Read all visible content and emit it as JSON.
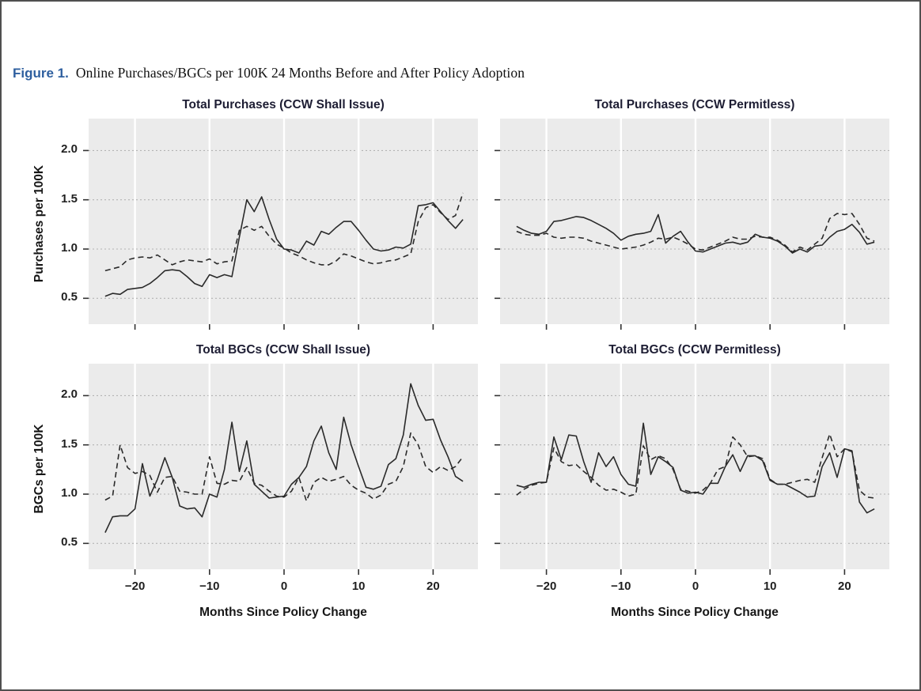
{
  "caption": {
    "label": "Figure 1.",
    "label_color": "#2e5f9f",
    "text": "Online Purchases/BGCs per 100K 24 Months Before and After Policy Adoption"
  },
  "axes": {
    "x_label": "Months Since Policy Change",
    "y_label_top": "Purchases per 100K",
    "y_label_bottom": "BGCs per 100K",
    "x_tick_labels": [
      "−20",
      "−10",
      "0",
      "10",
      "20"
    ],
    "x_tick_values": [
      -20,
      -10,
      0,
      10,
      20
    ],
    "y_tick_labels": [
      "0.5",
      "1.0",
      "1.5",
      "2.0"
    ],
    "y_tick_values": [
      0.5,
      1.0,
      1.5,
      2.0
    ]
  },
  "style": {
    "panel_background": "#ebebeb",
    "h_gridline_color": "#b3b3b3",
    "v_gridline_color": "#ffffff",
    "line_color": "#2a2a2a",
    "tick_color": "#333333"
  },
  "chart_data": {
    "type": "line",
    "grid": "on",
    "legend": "none",
    "xlim": [
      -26,
      26
    ],
    "ylim": [
      0.24,
      2.32
    ],
    "months": [
      -24,
      -23,
      -22,
      -21,
      -20,
      -19,
      -18,
      -17,
      -16,
      -15,
      -14,
      -13,
      -12,
      -11,
      -10,
      -9,
      -8,
      -7,
      -6,
      -5,
      -4,
      -3,
      -2,
      -1,
      0,
      1,
      2,
      3,
      4,
      5,
      6,
      7,
      8,
      9,
      10,
      11,
      12,
      13,
      14,
      15,
      16,
      17,
      18,
      19,
      20,
      21,
      22,
      23,
      24
    ],
    "panels": [
      {
        "title": "Total Purchases (CCW Shall Issue)",
        "ylabel": "Purchases per 100K",
        "series": [
          {
            "name": "solid",
            "style": "solid",
            "values": [
              0.52,
              0.55,
              0.54,
              0.59,
              0.6,
              0.61,
              0.65,
              0.71,
              0.78,
              0.79,
              0.78,
              0.72,
              0.65,
              0.62,
              0.74,
              0.71,
              0.74,
              0.72,
              1.12,
              1.5,
              1.38,
              1.53,
              1.3,
              1.1,
              1.0,
              0.99,
              0.96,
              1.08,
              1.04,
              1.18,
              1.15,
              1.22,
              1.28,
              1.28,
              1.19,
              1.09,
              1.0,
              0.98,
              0.99,
              1.02,
              1.01,
              1.05,
              1.44,
              1.45,
              1.47,
              1.38,
              1.29,
              1.21,
              1.3
            ]
          },
          {
            "name": "dashed",
            "style": "dashed",
            "values": [
              0.78,
              0.8,
              0.82,
              0.89,
              0.91,
              0.92,
              0.91,
              0.94,
              0.89,
              0.84,
              0.87,
              0.89,
              0.88,
              0.87,
              0.9,
              0.85,
              0.87,
              0.88,
              1.19,
              1.23,
              1.19,
              1.23,
              1.13,
              1.05,
              1.01,
              0.96,
              0.93,
              0.89,
              0.86,
              0.84,
              0.84,
              0.88,
              0.95,
              0.93,
              0.9,
              0.87,
              0.85,
              0.86,
              0.88,
              0.89,
              0.92,
              0.95,
              1.28,
              1.42,
              1.45,
              1.37,
              1.3,
              1.34,
              1.57
            ]
          }
        ]
      },
      {
        "title": "Total Purchases (CCW Permitless)",
        "ylabel": "Purchases per 100K",
        "series": [
          {
            "name": "solid",
            "style": "solid",
            "values": [
              1.23,
              1.19,
              1.16,
              1.15,
              1.18,
              1.28,
              1.29,
              1.31,
              1.33,
              1.32,
              1.29,
              1.25,
              1.21,
              1.16,
              1.09,
              1.13,
              1.15,
              1.16,
              1.18,
              1.35,
              1.06,
              1.13,
              1.18,
              1.07,
              0.98,
              0.97,
              1.0,
              1.03,
              1.06,
              1.07,
              1.05,
              1.07,
              1.15,
              1.12,
              1.11,
              1.08,
              1.03,
              0.96,
              1.0,
              0.97,
              1.03,
              1.04,
              1.12,
              1.18,
              1.2,
              1.25,
              1.17,
              1.05,
              1.07
            ]
          },
          {
            "name": "dashed",
            "style": "dashed",
            "values": [
              1.18,
              1.15,
              1.14,
              1.14,
              1.16,
              1.12,
              1.11,
              1.12,
              1.12,
              1.11,
              1.08,
              1.06,
              1.04,
              1.02,
              1.0,
              1.01,
              1.02,
              1.04,
              1.07,
              1.11,
              1.1,
              1.12,
              1.09,
              1.05,
              1.0,
              0.99,
              1.02,
              1.05,
              1.08,
              1.12,
              1.1,
              1.1,
              1.13,
              1.12,
              1.12,
              1.09,
              1.04,
              0.97,
              1.02,
              0.99,
              1.05,
              1.11,
              1.31,
              1.36,
              1.35,
              1.36,
              1.25,
              1.11,
              1.08
            ]
          }
        ]
      },
      {
        "title": "Total BGCs (CCW Shall Issue)",
        "ylabel": "BGCs per 100K",
        "series": [
          {
            "name": "solid",
            "style": "solid",
            "values": [
              0.61,
              0.77,
              0.78,
              0.78,
              0.85,
              1.31,
              0.98,
              1.15,
              1.37,
              1.17,
              0.88,
              0.85,
              0.86,
              0.77,
              1.0,
              0.97,
              1.25,
              1.73,
              1.23,
              1.54,
              1.1,
              1.03,
              0.96,
              0.97,
              0.98,
              1.1,
              1.17,
              1.28,
              1.54,
              1.69,
              1.42,
              1.25,
              1.78,
              1.5,
              1.28,
              1.07,
              1.05,
              1.08,
              1.3,
              1.36,
              1.6,
              2.12,
              1.9,
              1.75,
              1.76,
              1.55,
              1.38,
              1.18,
              1.13
            ]
          },
          {
            "name": "dashed",
            "style": "dashed",
            "values": [
              0.94,
              0.98,
              1.5,
              1.27,
              1.21,
              1.23,
              1.19,
              1.02,
              1.17,
              1.18,
              1.03,
              1.02,
              1.0,
              1.0,
              1.38,
              1.11,
              1.1,
              1.14,
              1.13,
              1.27,
              1.11,
              1.09,
              1.03,
              0.98,
              0.97,
              1.03,
              1.17,
              0.93,
              1.12,
              1.17,
              1.13,
              1.15,
              1.18,
              1.09,
              1.04,
              1.01,
              0.95,
              0.99,
              1.1,
              1.13,
              1.28,
              1.62,
              1.5,
              1.28,
              1.22,
              1.28,
              1.24,
              1.28,
              1.38
            ]
          }
        ]
      },
      {
        "title": "Total BGCs (CCW Permitless)",
        "ylabel": "BGCs per 100K",
        "series": [
          {
            "name": "solid",
            "style": "solid",
            "values": [
              1.09,
              1.07,
              1.1,
              1.12,
              1.12,
              1.58,
              1.35,
              1.6,
              1.59,
              1.33,
              1.12,
              1.42,
              1.28,
              1.38,
              1.2,
              1.1,
              1.08,
              1.72,
              1.2,
              1.38,
              1.33,
              1.27,
              1.04,
              1.01,
              1.02,
              1.0,
              1.11,
              1.11,
              1.28,
              1.4,
              1.23,
              1.39,
              1.39,
              1.34,
              1.14,
              1.1,
              1.1,
              1.06,
              1.02,
              0.97,
              0.98,
              1.28,
              1.42,
              1.17,
              1.46,
              1.44,
              0.92,
              0.81,
              0.85
            ]
          },
          {
            "name": "dashed",
            "style": "dashed",
            "values": [
              0.99,
              1.05,
              1.09,
              1.11,
              1.12,
              1.47,
              1.33,
              1.29,
              1.3,
              1.23,
              1.17,
              1.09,
              1.04,
              1.05,
              1.02,
              0.98,
              1.0,
              1.49,
              1.35,
              1.39,
              1.36,
              1.25,
              1.05,
              1.03,
              1.01,
              1.04,
              1.11,
              1.25,
              1.28,
              1.58,
              1.5,
              1.38,
              1.39,
              1.36,
              1.15,
              1.1,
              1.1,
              1.12,
              1.14,
              1.15,
              1.12,
              1.37,
              1.61,
              1.38,
              1.46,
              1.43,
              1.04,
              0.97,
              0.96
            ]
          }
        ]
      }
    ]
  }
}
